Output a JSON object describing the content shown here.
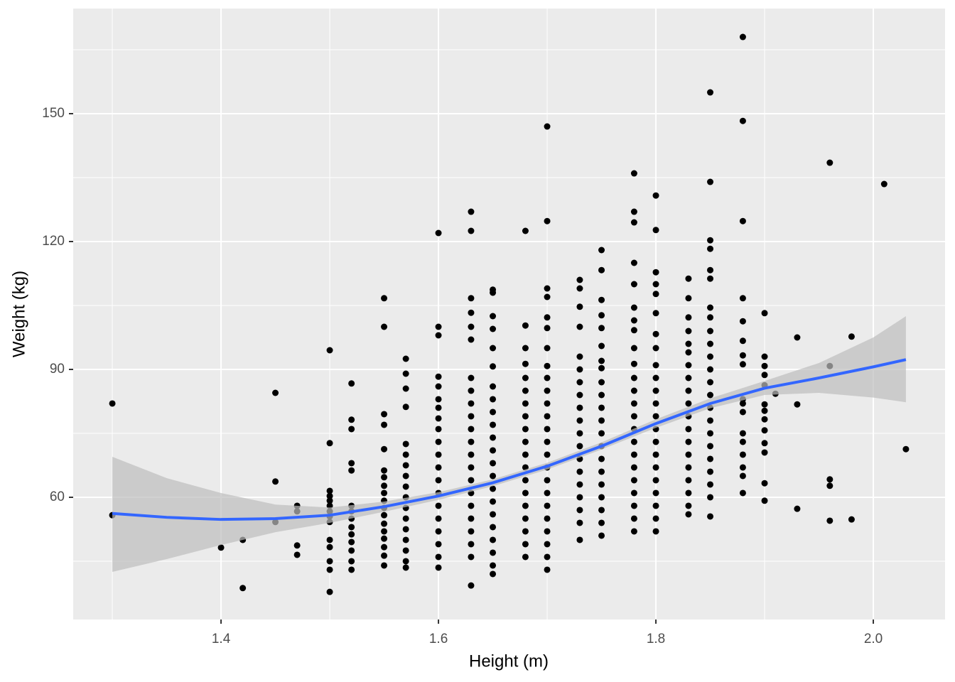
{
  "chart_data": {
    "type": "scatter",
    "x_label": "Height (m)",
    "y_label": "Weight (kg)",
    "xlim": [
      1.264,
      2.066
    ],
    "ylim": [
      31.33,
      174.67
    ],
    "xticks": [
      1.4,
      1.6,
      1.8,
      {
        "value": 2,
        "label": "2.0"
      }
    ],
    "yticks": [
      60,
      90,
      120,
      150
    ],
    "grid": true,
    "point_color": "#000000",
    "columns": [
      {
        "x": 1.3,
        "y": [
          82,
          55.8
        ]
      },
      {
        "x": 1.4,
        "y": [
          48.2
        ]
      },
      {
        "x": 1.42,
        "y": [
          50,
          38.7
        ]
      },
      {
        "x": 1.45,
        "y": [
          84.5,
          63.7,
          54.2
        ]
      },
      {
        "x": 1.47,
        "y": [
          58,
          56.7,
          48.7,
          46.5
        ]
      },
      {
        "x": 1.5,
        "y": [
          94.5,
          72.7,
          61.5,
          60.3,
          59.2,
          58,
          56.7,
          55.5,
          54.2,
          50,
          48.3,
          45,
          43,
          37.8
        ]
      },
      {
        "x": 1.52,
        "y": [
          86.7,
          78.2,
          76,
          68,
          66.3,
          58,
          56.7,
          55,
          53,
          51.3,
          49.5,
          47.5,
          45,
          43
        ]
      },
      {
        "x": 1.55,
        "y": [
          106.7,
          100,
          79.5,
          77,
          71.3,
          66.3,
          64.7,
          62.7,
          61,
          59.2,
          57.5,
          55.8,
          53.8,
          52,
          50.3,
          48.3,
          46.3,
          44
        ]
      },
      {
        "x": 1.57,
        "y": [
          92.5,
          89,
          85.5,
          81.2,
          72.5,
          70,
          67.5,
          65,
          62.5,
          60,
          57.5,
          55,
          52.5,
          50,
          47.5,
          45,
          43.5
        ]
      },
      {
        "x": 1.6,
        "y": [
          122,
          100,
          98,
          88.3,
          86,
          83,
          81,
          78.5,
          76,
          73,
          70,
          67,
          64,
          61,
          58,
          55,
          52,
          49,
          46,
          43.5
        ]
      },
      {
        "x": 1.63,
        "y": [
          127,
          122.5,
          106.7,
          103.3,
          100,
          97,
          88,
          85,
          82,
          79,
          76,
          73,
          70,
          67,
          64,
          61,
          58,
          55,
          52,
          49,
          46,
          39.3
        ]
      },
      {
        "x": 1.65,
        "y": [
          108.7,
          108,
          102.5,
          99.5,
          95,
          90.7,
          86,
          83,
          80,
          77,
          74,
          71,
          68,
          65,
          62,
          59,
          56,
          53,
          50,
          47,
          44,
          42
        ]
      },
      {
        "x": 1.68,
        "y": [
          122.5,
          100.3,
          95,
          91.3,
          88,
          85,
          82,
          79,
          76,
          73,
          70,
          67,
          64,
          61,
          58,
          55,
          52,
          49,
          46
        ]
      },
      {
        "x": 1.7,
        "y": [
          147,
          124.8,
          109,
          107,
          102.2,
          99.7,
          95,
          90.8,
          88,
          85,
          82,
          79,
          76,
          73,
          70,
          67,
          64,
          61,
          58,
          55,
          52,
          49,
          46,
          43
        ]
      },
      {
        "x": 1.73,
        "y": [
          111,
          109,
          104.7,
          100,
          93,
          90,
          87,
          84,
          81,
          78,
          75,
          72,
          69,
          66,
          63,
          60,
          57,
          54,
          50
        ]
      },
      {
        "x": 1.75,
        "y": [
          118,
          113.3,
          106.3,
          102.7,
          99.7,
          95.5,
          92,
          90.3,
          87,
          84,
          81,
          78,
          75,
          72,
          69,
          66,
          63,
          60,
          57,
          54,
          51
        ]
      },
      {
        "x": 1.78,
        "y": [
          136,
          127,
          124.5,
          115,
          110,
          104.5,
          101.5,
          99.2,
          95,
          91.3,
          88,
          85,
          82,
          79,
          76,
          73,
          70,
          67,
          64,
          61,
          58,
          55,
          52
        ]
      },
      {
        "x": 1.8,
        "y": [
          130.8,
          122.7,
          112.8,
          110,
          107.7,
          103.2,
          98.3,
          95,
          91,
          88,
          85,
          82,
          79,
          76,
          73,
          70,
          67,
          64,
          61,
          58,
          55,
          52
        ]
      },
      {
        "x": 1.83,
        "y": [
          111.3,
          106.7,
          102.2,
          99,
          96,
          94,
          91,
          88,
          85,
          82,
          79,
          76,
          73,
          70,
          67,
          64,
          61,
          58,
          56
        ]
      },
      {
        "x": 1.85,
        "y": [
          155,
          134,
          120.3,
          118.3,
          113.3,
          111.3,
          104.5,
          102.2,
          99,
          96,
          93,
          90,
          87,
          84,
          81,
          78,
          75,
          72,
          69,
          66,
          63,
          60,
          55.5
        ]
      },
      {
        "x": 1.88,
        "y": [
          168,
          148.3,
          124.8,
          106.7,
          101.3,
          96.7,
          93.3,
          91.2,
          83,
          82,
          80,
          75,
          73,
          70,
          67,
          65,
          61
        ]
      },
      {
        "x": 1.9,
        "y": [
          103.2,
          93,
          90.8,
          88.7,
          86.3,
          81.8,
          80.3,
          78.3,
          75.7,
          72.7,
          70.5,
          63.3,
          59.2
        ]
      },
      {
        "x": 1.91,
        "y": [
          84.3
        ]
      },
      {
        "x": 1.93,
        "y": [
          97.5,
          81.8,
          57.3
        ]
      },
      {
        "x": 1.96,
        "y": [
          138.5,
          90.8,
          64.2,
          62.7,
          54.5
        ]
      },
      {
        "x": 1.98,
        "y": [
          97.7,
          54.8
        ]
      },
      {
        "x": 2.01,
        "y": [
          133.5
        ]
      },
      {
        "x": 2.03,
        "y": [
          71.3
        ]
      }
    ],
    "smooth": {
      "color": "#3366FF",
      "band_color": "#bdbdbd",
      "x": [
        1.3,
        1.35,
        1.4,
        1.45,
        1.5,
        1.55,
        1.6,
        1.65,
        1.7,
        1.75,
        1.8,
        1.85,
        1.9,
        1.95,
        2.0,
        2.03
      ],
      "y": [
        56.2,
        55.3,
        54.8,
        55,
        55.8,
        57.8,
        60.3,
        63.4,
        67.3,
        72,
        77.3,
        82,
        85.6,
        88,
        90.6,
        92.3
      ],
      "lower": [
        42.5,
        45.5,
        48.8,
        51.8,
        54,
        56.6,
        59.4,
        62.6,
        66.5,
        71.2,
        76.3,
        80.9,
        84,
        84.5,
        83.4,
        82.3
      ],
      "upper": [
        69.5,
        64.5,
        61,
        58.3,
        57.6,
        59,
        61.2,
        64.2,
        68.1,
        72.9,
        78.3,
        83.2,
        87.3,
        91.5,
        97.5,
        102.5
      ]
    }
  }
}
